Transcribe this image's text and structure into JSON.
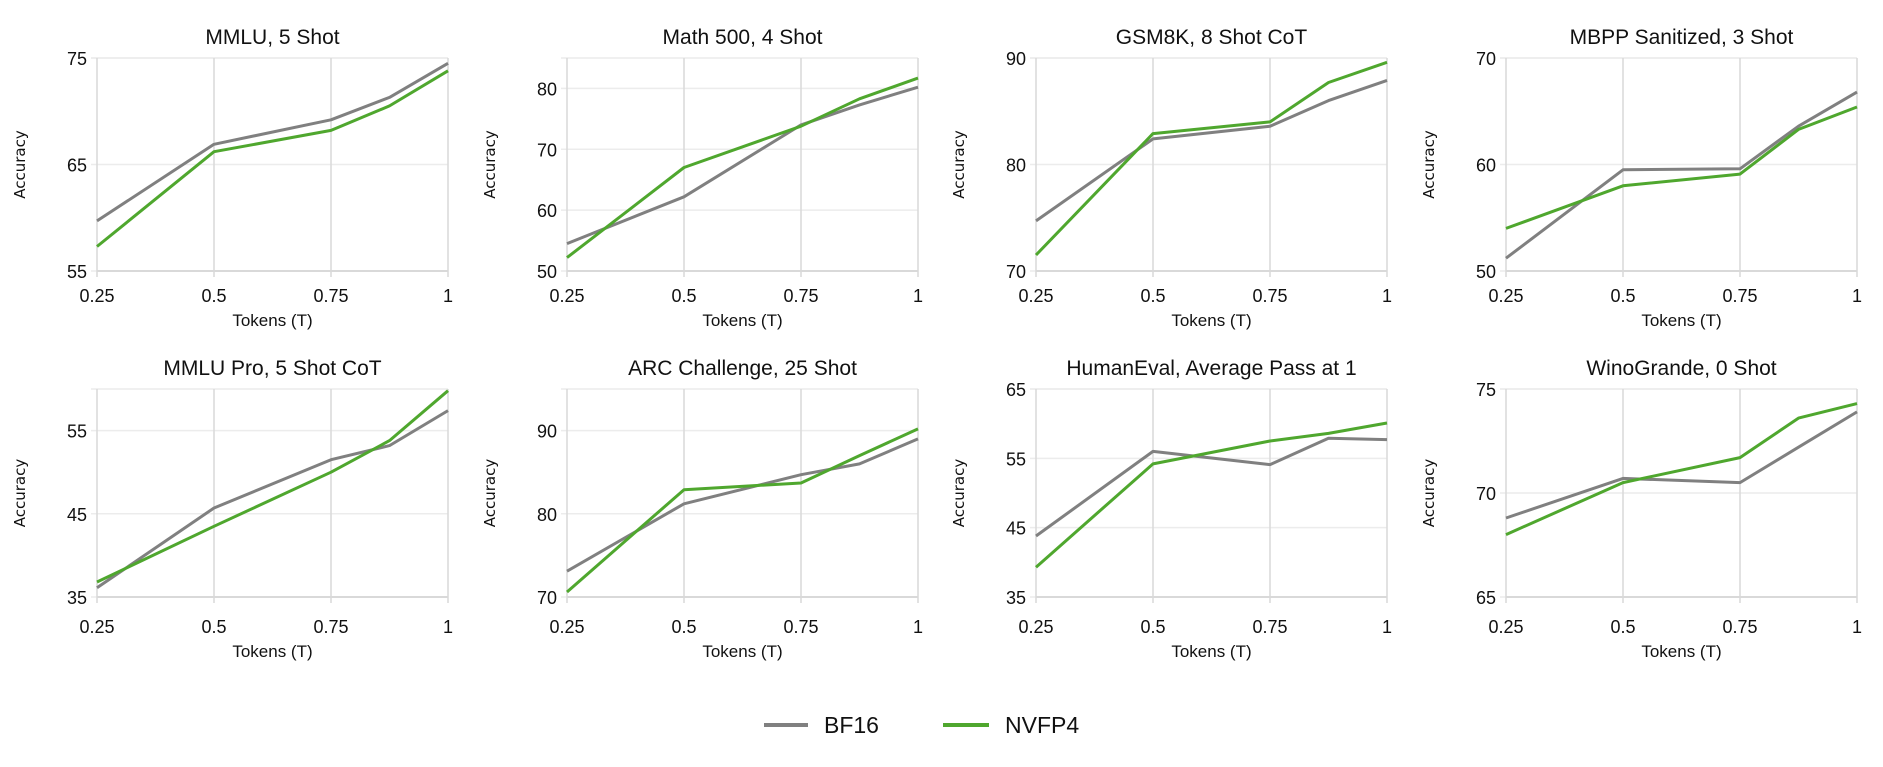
{
  "legend": {
    "position": "bottom-center",
    "items": [
      {
        "label": "BF16",
        "color": "#808080"
      },
      {
        "label": "NVFP4",
        "color": "#4fa72e"
      }
    ]
  },
  "grid": true,
  "chart_data": [
    {
      "type": "line",
      "title": "MMLU, 5 Shot",
      "xlabel": "Tokens (T)",
      "ylabel": "Accuracy",
      "x": [
        0.25,
        0.5,
        0.75,
        0.875,
        1
      ],
      "xticks": [
        "0.25",
        "0.5",
        "0.75",
        "1"
      ],
      "xlim": [
        0.25,
        1
      ],
      "ylim": [
        55,
        75
      ],
      "yticks": [
        55,
        65,
        75
      ],
      "series": [
        {
          "name": "BF16",
          "values": [
            59.7,
            66.9,
            69.2,
            71.3,
            74.5
          ]
        },
        {
          "name": "NVFP4",
          "values": [
            57.3,
            66.2,
            68.2,
            70.5,
            73.8
          ]
        }
      ]
    },
    {
      "type": "line",
      "title": "Math 500, 4 Shot",
      "xlabel": "Tokens (T)",
      "ylabel": "Accuracy",
      "x": [
        0.25,
        0.5,
        0.75,
        0.875,
        1
      ],
      "xticks": [
        "0.25",
        "0.5",
        "0.75",
        "1"
      ],
      "xlim": [
        0.25,
        1
      ],
      "ylim": [
        50,
        85
      ],
      "yticks": [
        50,
        60,
        70,
        80
      ],
      "series": [
        {
          "name": "BF16",
          "values": [
            54.5,
            62.2,
            74.0,
            77.3,
            80.2
          ]
        },
        {
          "name": "NVFP4",
          "values": [
            52.2,
            67.0,
            73.8,
            78.3,
            81.7
          ]
        }
      ]
    },
    {
      "type": "line",
      "title": "GSM8K, 8 Shot CoT",
      "xlabel": "Tokens (T)",
      "ylabel": "Accuracy",
      "x": [
        0.25,
        0.5,
        0.75,
        0.875,
        1
      ],
      "xticks": [
        "0.25",
        "0.5",
        "0.75",
        "1"
      ],
      "xlim": [
        0.25,
        1
      ],
      "ylim": [
        70,
        90
      ],
      "yticks": [
        70,
        80,
        90
      ],
      "series": [
        {
          "name": "BF16",
          "values": [
            74.7,
            82.4,
            83.6,
            86.0,
            87.9
          ]
        },
        {
          "name": "NVFP4",
          "values": [
            71.5,
            82.9,
            84.0,
            87.7,
            89.6
          ]
        }
      ]
    },
    {
      "type": "line",
      "title": "MBPP Sanitized, 3 Shot",
      "xlabel": "Tokens (T)",
      "ylabel": "Accuracy",
      "x": [
        0.25,
        0.5,
        0.75,
        0.875,
        1
      ],
      "xticks": [
        "0.25",
        "0.5",
        "0.75",
        "1"
      ],
      "xlim": [
        0.25,
        1
      ],
      "ylim": [
        50,
        70
      ],
      "yticks": [
        50,
        60,
        70
      ],
      "series": [
        {
          "name": "BF16",
          "values": [
            51.2,
            59.5,
            59.6,
            63.6,
            66.8
          ]
        },
        {
          "name": "NVFP4",
          "values": [
            54.0,
            58.0,
            59.1,
            63.3,
            65.4
          ]
        }
      ]
    },
    {
      "type": "line",
      "title": "MMLU Pro, 5 Shot CoT",
      "xlabel": "Tokens (T)",
      "ylabel": "Accuracy",
      "x": [
        0.25,
        0.5,
        0.75,
        0.875,
        1
      ],
      "xticks": [
        "0.25",
        "0.5",
        "0.75",
        "1"
      ],
      "xlim": [
        0.25,
        1
      ],
      "ylim": [
        35,
        60
      ],
      "yticks": [
        35,
        45,
        55
      ],
      "series": [
        {
          "name": "BF16",
          "values": [
            36.1,
            45.7,
            51.5,
            53.2,
            57.4
          ]
        },
        {
          "name": "NVFP4",
          "values": [
            36.8,
            43.5,
            50.0,
            53.8,
            59.8
          ]
        }
      ]
    },
    {
      "type": "line",
      "title": "ARC Challenge, 25 Shot",
      "xlabel": "Tokens (T)",
      "ylabel": "Accuracy",
      "x": [
        0.25,
        0.5,
        0.75,
        0.875,
        1
      ],
      "xticks": [
        "0.25",
        "0.5",
        "0.75",
        "1"
      ],
      "xlim": [
        0.25,
        1
      ],
      "ylim": [
        70,
        95
      ],
      "yticks": [
        70,
        80,
        90
      ],
      "series": [
        {
          "name": "BF16",
          "values": [
            73.1,
            81.2,
            84.7,
            86.0,
            89.0
          ]
        },
        {
          "name": "NVFP4",
          "values": [
            70.6,
            82.9,
            83.7,
            87.0,
            90.2
          ]
        }
      ]
    },
    {
      "type": "line",
      "title": "HumanEval, Average Pass at 1",
      "xlabel": "Tokens (T)",
      "ylabel": "Accuracy",
      "x": [
        0.25,
        0.5,
        0.75,
        0.875,
        1
      ],
      "xticks": [
        "0.25",
        "0.5",
        "0.75",
        "1"
      ],
      "xlim": [
        0.25,
        1
      ],
      "ylim": [
        35,
        65
      ],
      "yticks": [
        35,
        45,
        55,
        65
      ],
      "series": [
        {
          "name": "BF16",
          "values": [
            43.8,
            56.0,
            54.1,
            57.9,
            57.7
          ]
        },
        {
          "name": "NVFP4",
          "values": [
            39.3,
            54.2,
            57.5,
            58.6,
            60.1
          ]
        }
      ]
    },
    {
      "type": "line",
      "title": "WinoGrande, 0 Shot",
      "xlabel": "Tokens (T)",
      "ylabel": "Accuracy",
      "x": [
        0.25,
        0.5,
        0.75,
        0.875,
        1
      ],
      "xticks": [
        "0.25",
        "0.5",
        "0.75",
        "1"
      ],
      "xlim": [
        0.25,
        1
      ],
      "ylim": [
        65,
        75
      ],
      "yticks": [
        65,
        70,
        75
      ],
      "series": [
        {
          "name": "BF16",
          "values": [
            68.8,
            70.7,
            70.5,
            72.2,
            73.9
          ]
        },
        {
          "name": "NVFP4",
          "values": [
            68.0,
            70.5,
            71.7,
            73.6,
            74.3
          ]
        }
      ]
    }
  ]
}
